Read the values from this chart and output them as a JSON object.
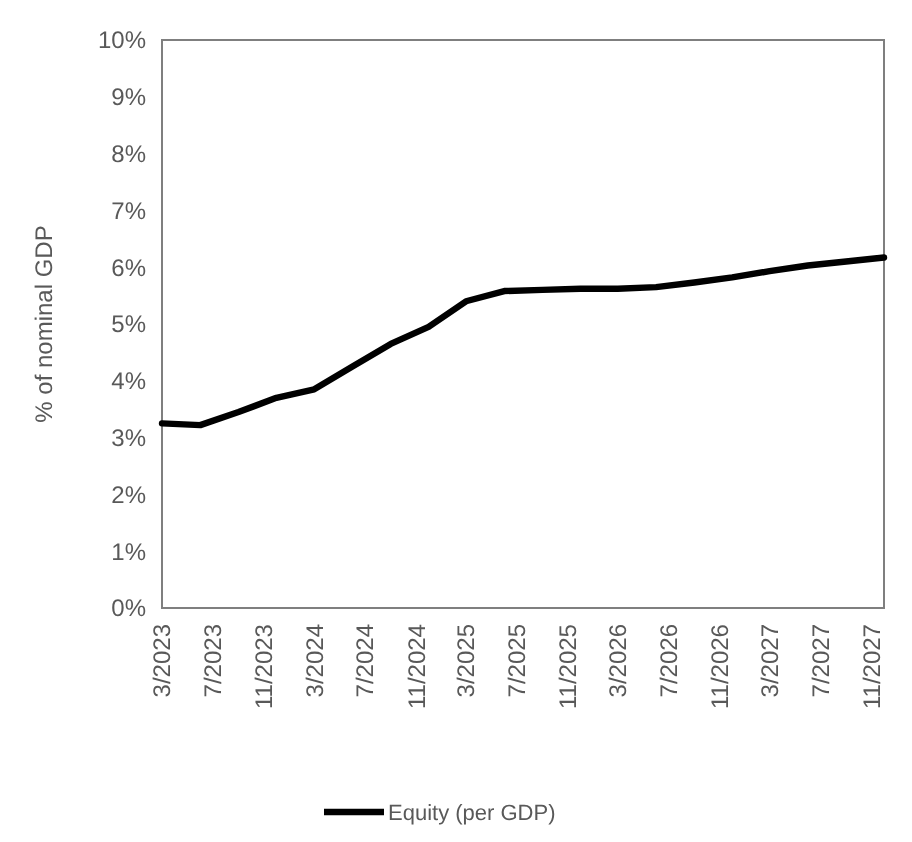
{
  "chart_data": {
    "type": "line",
    "ylabel": "% of nominal GDP",
    "x": [
      "2023-03",
      "2023-06",
      "2023-09",
      "2023-12",
      "2024-03",
      "2024-06",
      "2024-09",
      "2024-12",
      "2025-03",
      "2025-06",
      "2025-09",
      "2025-12",
      "2026-03",
      "2026-06",
      "2026-09",
      "2026-12",
      "2027-03",
      "2027-06",
      "2027-09",
      "2027-12"
    ],
    "series": [
      {
        "name": "Equity (per GDP)",
        "color": "#000000",
        "values": [
          3.25,
          3.22,
          3.45,
          3.7,
          3.85,
          4.25,
          4.65,
          4.95,
          5.4,
          5.58,
          5.6,
          5.62,
          5.62,
          5.65,
          5.73,
          5.82,
          5.93,
          6.03,
          6.1,
          6.17
        ]
      }
    ],
    "xlim": [
      "2023-03",
      "2027-12"
    ],
    "xticks": [
      {
        "value": "2023-03",
        "label": "3/2023"
      },
      {
        "value": "2023-07",
        "label": "7/2023"
      },
      {
        "value": "2023-11",
        "label": "11/2023"
      },
      {
        "value": "2024-03",
        "label": "3/2024"
      },
      {
        "value": "2024-07",
        "label": "7/2024"
      },
      {
        "value": "2024-11",
        "label": "11/2024"
      },
      {
        "value": "2025-03",
        "label": "3/2025"
      },
      {
        "value": "2025-07",
        "label": "7/2025"
      },
      {
        "value": "2025-11",
        "label": "11/2025"
      },
      {
        "value": "2026-03",
        "label": "3/2026"
      },
      {
        "value": "2026-07",
        "label": "7/2026"
      },
      {
        "value": "2026-11",
        "label": "11/2026"
      },
      {
        "value": "2027-03",
        "label": "3/2027"
      },
      {
        "value": "2027-07",
        "label": "7/2027"
      },
      {
        "value": "2027-11",
        "label": "11/2027"
      }
    ],
    "ylim": [
      0,
      10
    ],
    "yticks": [
      {
        "value": 0,
        "label": "0%"
      },
      {
        "value": 1,
        "label": "1%"
      },
      {
        "value": 2,
        "label": "2%"
      },
      {
        "value": 3,
        "label": "3%"
      },
      {
        "value": 4,
        "label": "4%"
      },
      {
        "value": 5,
        "label": "5%"
      },
      {
        "value": 6,
        "label": "6%"
      },
      {
        "value": 7,
        "label": "7%"
      },
      {
        "value": 8,
        "label": "8%"
      },
      {
        "value": 9,
        "label": "9%"
      },
      {
        "value": 10,
        "label": "10%"
      }
    ],
    "grid": false,
    "legend": "bottom",
    "line_style": "solid",
    "marker": "none"
  }
}
